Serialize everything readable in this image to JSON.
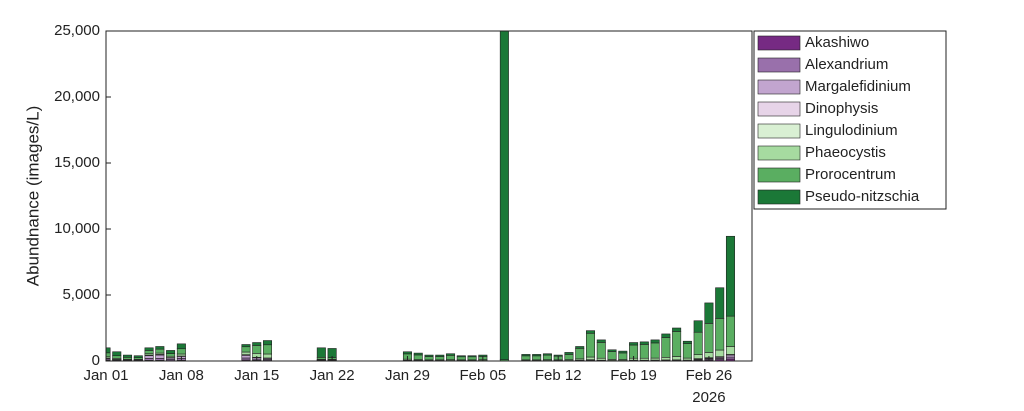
{
  "chart_data": {
    "type": "stacked-bar",
    "ylabel": "Abundnance (images/L)",
    "x_year_label": "2026",
    "x": [
      "2026-01-01",
      "2026-01-02",
      "2026-01-03",
      "2026-01-04",
      "2026-01-05",
      "2026-01-06",
      "2026-01-07",
      "2026-01-08",
      "2026-01-14",
      "2026-01-15",
      "2026-01-16",
      "2026-01-21",
      "2026-01-22",
      "2026-01-29",
      "2026-01-30",
      "2026-01-31",
      "2026-02-01",
      "2026-02-02",
      "2026-02-03",
      "2026-02-04",
      "2026-02-05",
      "2026-02-07",
      "2026-02-09",
      "2026-02-10",
      "2026-02-11",
      "2026-02-12",
      "2026-02-13",
      "2026-02-14",
      "2026-02-15",
      "2026-02-16",
      "2026-02-17",
      "2026-02-18",
      "2026-02-19",
      "2026-02-20",
      "2026-02-21",
      "2026-02-22",
      "2026-02-23",
      "2026-02-24",
      "2026-02-25",
      "2026-02-26",
      "2026-02-27",
      "2026-02-28"
    ],
    "series": [
      {
        "name": "Akashiwo",
        "color": "#762a83",
        "values": [
          50,
          30,
          20,
          20,
          50,
          50,
          30,
          50,
          80,
          50,
          40,
          0,
          0,
          0,
          0,
          0,
          0,
          0,
          0,
          0,
          0,
          0,
          0,
          0,
          0,
          0,
          0,
          0,
          0,
          0,
          0,
          0,
          0,
          0,
          0,
          0,
          0,
          0,
          50,
          80,
          100,
          150
        ]
      },
      {
        "name": "Alexandrium",
        "color": "#9970ab",
        "values": [
          100,
          50,
          30,
          30,
          150,
          150,
          100,
          150,
          150,
          100,
          80,
          50,
          50,
          30,
          20,
          20,
          20,
          20,
          20,
          20,
          20,
          0,
          20,
          20,
          20,
          20,
          20,
          30,
          50,
          30,
          20,
          20,
          30,
          30,
          30,
          40,
          40,
          30,
          60,
          80,
          100,
          150
        ]
      },
      {
        "name": "Margalefidinium",
        "color": "#c2a5cf",
        "values": [
          50,
          30,
          20,
          20,
          200,
          250,
          100,
          150,
          200,
          100,
          80,
          20,
          20,
          20,
          20,
          10,
          10,
          10,
          10,
          10,
          10,
          0,
          10,
          10,
          10,
          10,
          10,
          20,
          30,
          20,
          10,
          10,
          20,
          20,
          20,
          20,
          30,
          20,
          40,
          50,
          80,
          150
        ]
      },
      {
        "name": "Dinophysis",
        "color": "#e7d4e8",
        "values": [
          20,
          10,
          10,
          10,
          50,
          50,
          30,
          30,
          50,
          30,
          30,
          10,
          10,
          10,
          10,
          10,
          10,
          10,
          10,
          10,
          10,
          0,
          10,
          10,
          10,
          10,
          10,
          10,
          20,
          10,
          10,
          10,
          10,
          10,
          20,
          20,
          20,
          20,
          30,
          40,
          50,
          50
        ]
      },
      {
        "name": "Lingulodinium",
        "color": "#d9f0d3",
        "values": [
          0,
          0,
          0,
          0,
          0,
          0,
          0,
          0,
          0,
          0,
          0,
          0,
          0,
          0,
          0,
          0,
          0,
          0,
          0,
          0,
          0,
          0,
          0,
          0,
          0,
          0,
          0,
          0,
          0,
          0,
          0,
          0,
          0,
          0,
          0,
          0,
          0,
          0,
          0,
          0,
          0,
          0
        ]
      },
      {
        "name": "Phaeocystis",
        "color": "#a6dba0",
        "values": [
          100,
          80,
          50,
          50,
          100,
          100,
          100,
          150,
          200,
          300,
          300,
          50,
          50,
          80,
          60,
          50,
          50,
          60,
          50,
          50,
          60,
          0,
          50,
          50,
          60,
          50,
          60,
          100,
          200,
          150,
          80,
          70,
          150,
          150,
          150,
          200,
          250,
          150,
          300,
          400,
          500,
          600
        ]
      },
      {
        "name": "Prorocentrum",
        "color": "#5aae61",
        "values": [
          300,
          200,
          150,
          120,
          250,
          300,
          200,
          400,
          400,
          600,
          700,
          150,
          120,
          400,
          350,
          250,
          250,
          330,
          230,
          230,
          250,
          100,
          300,
          300,
          350,
          280,
          400,
          800,
          1800,
          1200,
          600,
          500,
          1000,
          1050,
          1150,
          1500,
          1900,
          1100,
          1700,
          2200,
          2400,
          2300
        ]
      },
      {
        "name": "Pseudo-nitzschia",
        "color": "#1b7837",
        "values": [
          380,
          300,
          170,
          150,
          200,
          200,
          240,
          370,
          170,
          220,
          320,
          720,
          700,
          160,
          140,
          110,
          110,
          120,
          80,
          80,
          100,
          24900,
          110,
          110,
          100,
          80,
          150,
          140,
          200,
          190,
          130,
          140,
          190,
          190,
          230,
          270,
          260,
          180,
          870,
          1550,
          2320,
          6050
        ]
      }
    ],
    "xlim": [
      "2026-01-01",
      "2026-03-02"
    ],
    "xticks": [
      {
        "value": "2026-01-01",
        "label": "Jan 01"
      },
      {
        "value": "2026-01-08",
        "label": "Jan 08"
      },
      {
        "value": "2026-01-15",
        "label": "Jan 15"
      },
      {
        "value": "2026-01-22",
        "label": "Jan 22"
      },
      {
        "value": "2026-01-29",
        "label": "Jan 29"
      },
      {
        "value": "2026-02-05",
        "label": "Feb 05"
      },
      {
        "value": "2026-02-12",
        "label": "Feb 12"
      },
      {
        "value": "2026-02-19",
        "label": "Feb 19"
      },
      {
        "value": "2026-02-26",
        "label": "Feb 26"
      }
    ],
    "ylim": [
      0,
      25000
    ],
    "yticks": [
      0,
      {
        "value": 5000,
        "label": "5,000"
      },
      {
        "value": 10000,
        "label": "10,000"
      },
      {
        "value": 15000,
        "label": "15,000"
      },
      {
        "value": 20000,
        "label": "20,000"
      },
      {
        "value": 25000,
        "label": "25,000"
      }
    ],
    "grid": false,
    "legend_location": "outside-northeast"
  }
}
